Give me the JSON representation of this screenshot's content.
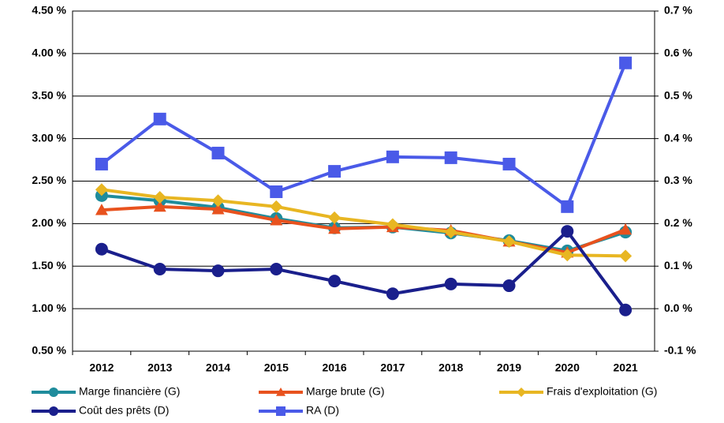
{
  "chart_data": {
    "type": "line",
    "categories": [
      "2012",
      "2013",
      "2014",
      "2015",
      "2016",
      "2017",
      "2018",
      "2019",
      "2020",
      "2021"
    ],
    "ylim": [
      0.5,
      4.5
    ],
    "yticks": [
      {
        "value": 0.5,
        "label": "0.50 %"
      },
      {
        "value": 1.0,
        "label": "1.00 %"
      },
      {
        "value": 1.5,
        "label": "1.50 %"
      },
      {
        "value": 2.0,
        "label": "2.00 %"
      },
      {
        "value": 2.5,
        "label": "2.50 %"
      },
      {
        "value": 3.0,
        "label": "3.00 %"
      },
      {
        "value": 3.5,
        "label": "3.50 %"
      },
      {
        "value": 4.0,
        "label": "4.00 %"
      },
      {
        "value": 4.5,
        "label": "4.50 %"
      }
    ],
    "y2lim": [
      -0.1,
      0.7
    ],
    "y2ticks": [
      {
        "value": -0.1,
        "label": "-0.1 %"
      },
      {
        "value": 0.0,
        "label": "0.0 %"
      },
      {
        "value": 0.1,
        "label": "0.1 %"
      },
      {
        "value": 0.2,
        "label": "0.2 %"
      },
      {
        "value": 0.3,
        "label": "0.3 %"
      },
      {
        "value": 0.4,
        "label": "0.4 %"
      },
      {
        "value": 0.5,
        "label": "0.5 %"
      },
      {
        "value": 0.6,
        "label": "0.6 %"
      },
      {
        "value": 0.7,
        "label": "0.7 %"
      }
    ],
    "grid": true,
    "legend": "bottom",
    "series": [
      {
        "name": "Marge financière (G)",
        "color": "#1f8c9c",
        "marker": "circle",
        "values": [
          2.33,
          2.27,
          2.19,
          2.06,
          1.95,
          1.96,
          1.89,
          1.8,
          1.68,
          1.9
        ]
      },
      {
        "name": "Marge brute (G)",
        "color": "#e8521e",
        "marker": "triangle",
        "values": [
          2.16,
          2.2,
          2.17,
          2.04,
          1.94,
          1.96,
          1.92,
          1.79,
          1.66,
          1.93
        ]
      },
      {
        "name": "Frais d'exploitation (G)",
        "color": "#e8b622",
        "marker": "diamond",
        "values": [
          2.4,
          2.31,
          2.27,
          2.2,
          2.07,
          1.99,
          1.9,
          1.79,
          1.63,
          1.62
        ]
      },
      {
        "name": "Coût des prêts (D)",
        "color": "#1a1f8c",
        "marker": "circle",
        "axis": "y2",
        "values": [
          0.14,
          0.093,
          0.089,
          0.093,
          0.065,
          0.035,
          0.058,
          0.054,
          0.182,
          -0.003
        ]
      },
      {
        "name": "RA (D)",
        "color": "#4a5ae8",
        "marker": "square",
        "axis": "y2",
        "values": [
          0.34,
          0.446,
          0.366,
          0.275,
          0.323,
          0.357,
          0.355,
          0.34,
          0.24,
          0.578
        ]
      }
    ]
  }
}
